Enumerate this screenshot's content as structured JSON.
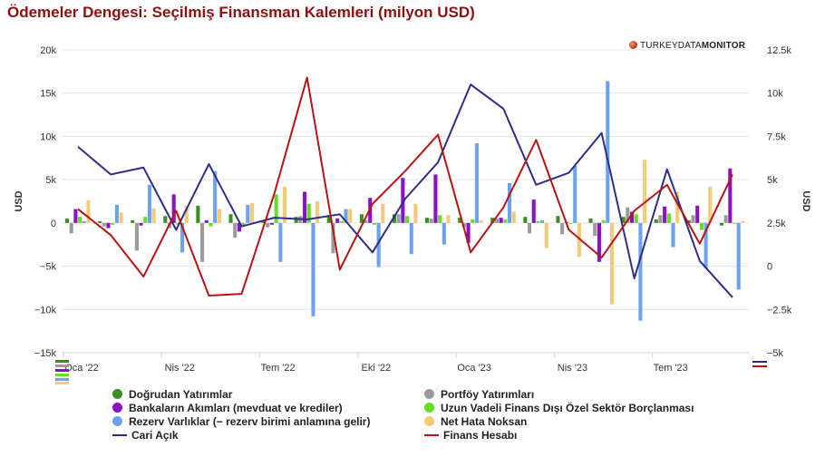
{
  "title": "Ödemeler Dengesi: Seçilmiş Finansman Kalemleri (milyon USD)",
  "brand": {
    "part1": "TURKEYDATA",
    "part2": "MONITOR"
  },
  "chart_data": {
    "type": "bar",
    "title": "Ödemeler Dengesi: Seçilmiş Finansman Kalemleri (milyon USD)",
    "ylabel_left": "USD",
    "ylabel_right": "USD",
    "ylim_left": [
      -15000,
      20000
    ],
    "ylim_right": [
      -5000,
      12500
    ],
    "yticks_left": [
      "−15k",
      "−10k",
      "−5k",
      "0",
      "5k",
      "10k",
      "15k",
      "20k"
    ],
    "yticks_left_values": [
      -15000,
      -10000,
      -5000,
      0,
      5000,
      10000,
      15000,
      20000
    ],
    "yticks_right": [
      "−5k",
      "−2.5k",
      "0",
      "2.5k",
      "5k",
      "7.5k",
      "10k",
      "12.5k"
    ],
    "yticks_right_values": [
      -5000,
      -2500,
      0,
      2500,
      5000,
      7500,
      10000,
      12500
    ],
    "xtick_labels": [
      "Oca '22",
      "Nis '22",
      "Tem '22",
      "Eki '22",
      "Oca '23",
      "Nis '23",
      "Tem '23"
    ],
    "xtick_indices": [
      0,
      3,
      6,
      9,
      12,
      15,
      18
    ],
    "x": [
      "2022-01",
      "2022-02",
      "2022-03",
      "2022-04",
      "2022-05",
      "2022-06",
      "2022-07",
      "2022-08",
      "2022-09",
      "2022-10",
      "2022-11",
      "2022-12",
      "2023-01",
      "2023-02",
      "2023-03",
      "2023-04",
      "2023-05",
      "2023-06",
      "2023-07",
      "2023-08",
      "2023-09"
    ],
    "grid": true,
    "legend_position": "bottom",
    "bar_series": [
      {
        "name": "Doğrudan Yatırımlar",
        "color": "#3a8f1f",
        "values": [
          500,
          200,
          300,
          800,
          2000,
          1000,
          300,
          700,
          900,
          1000,
          1000,
          600,
          600,
          600,
          700,
          800,
          500,
          700,
          400,
          300,
          -300
        ]
      },
      {
        "name": "Portföy Yatırımları",
        "color": "#9b9b9b",
        "values": [
          -1200,
          -400,
          -3200,
          -600,
          -4500,
          -1700,
          -500,
          800,
          -3500,
          300,
          1000,
          500,
          -500,
          500,
          -1200,
          -1300,
          -1500,
          1800,
          900,
          900,
          900
        ]
      },
      {
        "name": "Bankaların Akımları (mevduat ve krediler)",
        "color": "#8a12c4",
        "values": [
          1600,
          -600,
          -300,
          3300,
          300,
          -1000,
          -200,
          3600,
          500,
          2900,
          5200,
          5600,
          -2300,
          600,
          2700,
          100,
          -4500,
          1300,
          1900,
          2000,
          6300
        ]
      },
      {
        "name": "Uzun Vadeli Finans Dışı Özel Sektör Borçlanması",
        "color": "#66dd22",
        "values": [
          700,
          -200,
          700,
          -200,
          -400,
          -400,
          3300,
          2200,
          200,
          -200,
          800,
          900,
          400,
          400,
          200,
          -100,
          300,
          1000,
          1100,
          -800,
          -100
        ]
      },
      {
        "name": "Rezerv Varlıklar (− rezerv birimi anlamına gelir)",
        "color": "#6da3ec",
        "values": [
          200,
          2100,
          4400,
          -3400,
          6000,
          2100,
          -4500,
          -10800,
          1600,
          -5100,
          -3600,
          -2500,
          9200,
          4600,
          300,
          6600,
          16400,
          -11300,
          -2800,
          -5200,
          -7700
        ]
      },
      {
        "name": "Net Hata Noksan",
        "color": "#f5c97a",
        "values": [
          2600,
          1200,
          1700,
          2000,
          1600,
          2300,
          4200,
          2500,
          1600,
          2200,
          2200,
          900,
          300,
          1300,
          -2900,
          -3900,
          -9400,
          7300,
          3600,
          4200,
          200
        ]
      }
    ],
    "line_series": [
      {
        "name": "Cari Açık",
        "color": "#2e2e8a",
        "axis": "right",
        "values": [
          6900,
          5300,
          5700,
          2100,
          5900,
          2300,
          2800,
          2700,
          3000,
          800,
          3900,
          6000,
          10500,
          9100,
          4700,
          5400,
          7700,
          -700,
          5600,
          300,
          -1800
        ]
      },
      {
        "name": "Finans Hesabı",
        "color": "#b81414",
        "axis": "right",
        "values": [
          3300,
          1800,
          -600,
          3200,
          -1700,
          -1600,
          4200,
          10900,
          -200,
          3600,
          5500,
          7600,
          800,
          3400,
          7300,
          2100,
          500,
          3200,
          4700,
          1300,
          5300
        ]
      }
    ]
  }
}
